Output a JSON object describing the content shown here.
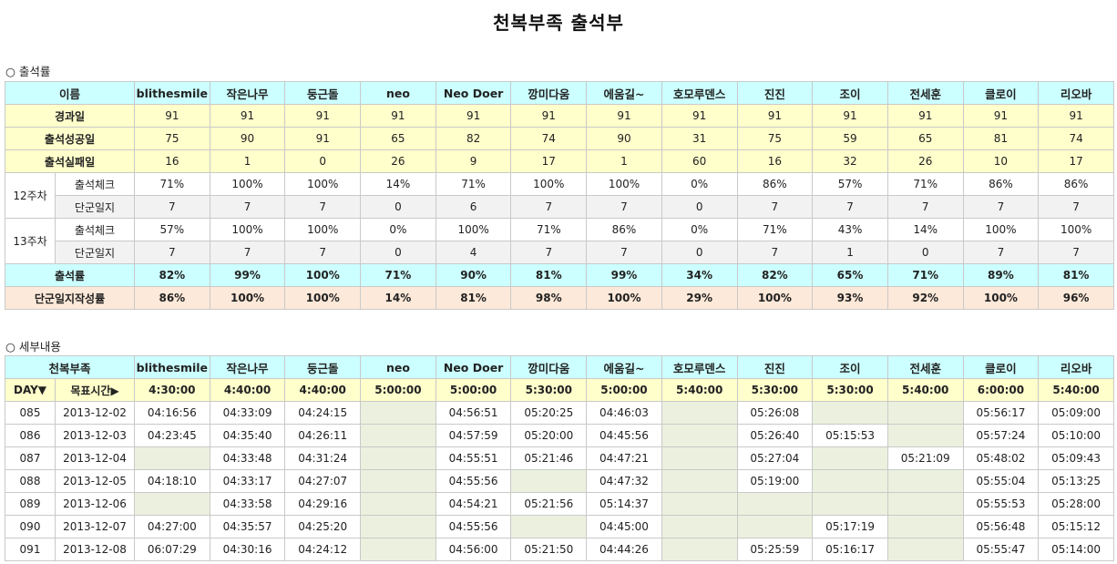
{
  "page_title": "천복부족 출석부",
  "attendance": {
    "section_title": "○ 출석률",
    "name_label": "이름",
    "members": [
      "blithesmile",
      "작은나무",
      "둥근돌",
      "neo",
      "Neo Doer",
      "깡미다움",
      "에움길~",
      "호모루덴스",
      "진진",
      "조이",
      "전세훈",
      "클로이",
      "리오바"
    ],
    "rows": {
      "elapsed": {
        "label": "경과일",
        "values": [
          "91",
          "91",
          "91",
          "91",
          "91",
          "91",
          "91",
          "91",
          "91",
          "91",
          "91",
          "91",
          "91"
        ]
      },
      "success": {
        "label": "출석성공일",
        "values": [
          "75",
          "90",
          "91",
          "65",
          "82",
          "74",
          "90",
          "31",
          "75",
          "59",
          "65",
          "81",
          "74"
        ]
      },
      "fail": {
        "label": "출석실패일",
        "values": [
          "16",
          "1",
          "0",
          "26",
          "9",
          "17",
          "1",
          "60",
          "16",
          "32",
          "26",
          "10",
          "17"
        ]
      }
    },
    "weeks": [
      {
        "label": "12주차",
        "check_label": "출석체크",
        "check": [
          "71%",
          "100%",
          "100%",
          "14%",
          "71%",
          "100%",
          "100%",
          "0%",
          "86%",
          "57%",
          "71%",
          "86%",
          "86%"
        ],
        "journal_label": "단군일지",
        "journal": [
          "7",
          "7",
          "7",
          "0",
          "6",
          "7",
          "7",
          "0",
          "7",
          "7",
          "7",
          "7",
          "7"
        ]
      },
      {
        "label": "13주차",
        "check_label": "출석체크",
        "check": [
          "57%",
          "100%",
          "100%",
          "0%",
          "100%",
          "71%",
          "86%",
          "0%",
          "71%",
          "43%",
          "14%",
          "100%",
          "100%"
        ],
        "journal_label": "단군일지",
        "journal": [
          "7",
          "7",
          "7",
          "0",
          "4",
          "7",
          "7",
          "0",
          "7",
          "1",
          "0",
          "7",
          "7"
        ]
      }
    ],
    "rate": {
      "label": "출석률",
      "values": [
        "82%",
        "99%",
        "100%",
        "71%",
        "90%",
        "81%",
        "99%",
        "34%",
        "82%",
        "65%",
        "71%",
        "89%",
        "81%"
      ]
    },
    "journal_rate": {
      "label": "단군일지작성률",
      "values": [
        "86%",
        "100%",
        "100%",
        "14%",
        "81%",
        "98%",
        "100%",
        "29%",
        "100%",
        "93%",
        "92%",
        "100%",
        "96%"
      ]
    }
  },
  "details": {
    "section_title": "○ 세부내용",
    "tribe_label": "천복부족",
    "day_label": "DAY▼",
    "target_label": "목표시간▶",
    "targets": [
      "4:30:00",
      "4:40:00",
      "4:40:00",
      "5:00:00",
      "5:00:00",
      "5:30:00",
      "5:00:00",
      "5:40:00",
      "5:30:00",
      "5:30:00",
      "5:40:00",
      "6:00:00",
      "5:40:00"
    ],
    "rows": [
      {
        "day": "085",
        "date": "2013-12-02",
        "times": [
          "04:16:56",
          "04:33:09",
          "04:24:15",
          "",
          "04:56:51",
          "05:20:25",
          "04:46:03",
          "",
          "05:26:08",
          "",
          "",
          "05:56:17",
          "05:09:00"
        ]
      },
      {
        "day": "086",
        "date": "2013-12-03",
        "times": [
          "04:23:45",
          "04:35:40",
          "04:26:11",
          "",
          "04:57:59",
          "05:20:00",
          "04:45:56",
          "",
          "05:26:40",
          "05:15:53",
          "",
          "05:57:24",
          "05:10:00"
        ]
      },
      {
        "day": "087",
        "date": "2013-12-04",
        "times": [
          "",
          "04:33:48",
          "04:31:24",
          "",
          "04:55:51",
          "05:21:46",
          "04:47:21",
          "",
          "05:27:04",
          "",
          "05:21:09",
          "05:48:02",
          "05:09:43"
        ]
      },
      {
        "day": "088",
        "date": "2013-12-05",
        "times": [
          "04:18:10",
          "04:33:17",
          "04:27:07",
          "",
          "04:55:56",
          "",
          "04:47:32",
          "",
          "05:19:00",
          "",
          "",
          "05:55:04",
          "05:13:25"
        ]
      },
      {
        "day": "089",
        "date": "2013-12-06",
        "times": [
          "",
          "04:33:58",
          "04:29:16",
          "",
          "04:54:21",
          "05:21:56",
          "05:14:37",
          "",
          "",
          "",
          "",
          "05:55:53",
          "05:28:00"
        ]
      },
      {
        "day": "090",
        "date": "2013-12-07",
        "times": [
          "04:27:00",
          "04:35:57",
          "04:25:20",
          "",
          "04:55:56",
          "",
          "04:45:00",
          "",
          "",
          "05:17:19",
          "",
          "05:56:48",
          "05:15:12"
        ]
      },
      {
        "day": "091",
        "date": "2013-12-08",
        "times": [
          "06:07:29",
          "04:30:16",
          "04:24:12",
          "",
          "04:56:00",
          "05:21:50",
          "04:44:26",
          "",
          "05:25:59",
          "05:16:17",
          "",
          "05:55:47",
          "05:14:00"
        ]
      }
    ]
  }
}
